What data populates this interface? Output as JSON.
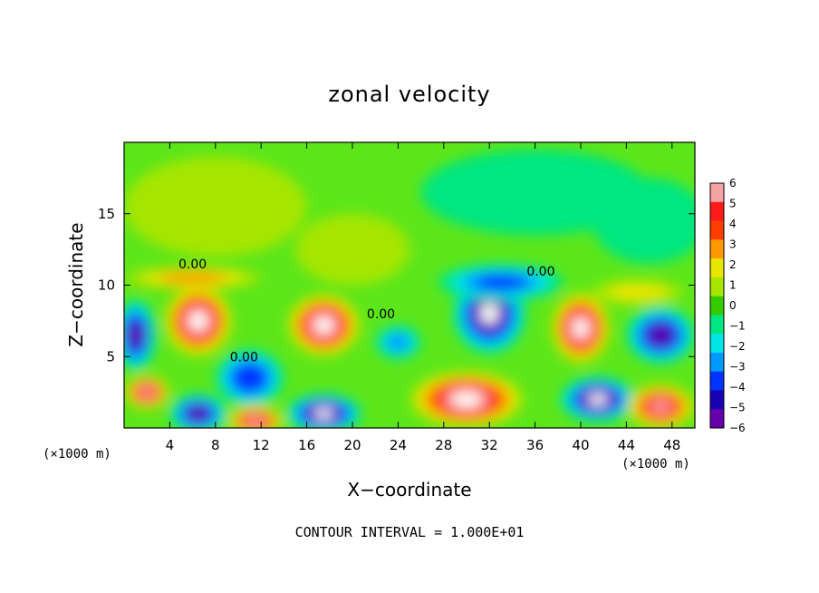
{
  "chart_data": {
    "type": "heatmap",
    "title": "zonal velocity",
    "xlabel": "X−coordinate",
    "ylabel": "Z−coordinate",
    "x_unit": "(×1000 m)",
    "z_unit": "(×1000 m)",
    "xlim": [
      0,
      50
    ],
    "ylim": [
      0,
      20
    ],
    "x_ticks": [
      4,
      8,
      12,
      16,
      20,
      24,
      28,
      32,
      36,
      40,
      44,
      48
    ],
    "x_tick_labels": [
      "4",
      "8",
      "12",
      "16",
      "20",
      "24",
      "28",
      "32",
      "36",
      "40",
      "44",
      "48"
    ],
    "y_ticks": [
      5,
      10,
      15
    ],
    "y_tick_labels": [
      "5",
      "10",
      "15"
    ],
    "colorbar": {
      "min": -6,
      "max": 6,
      "levels": [
        6,
        5,
        4,
        3,
        2,
        1,
        0,
        -1,
        -2,
        -3,
        -4,
        -5,
        -6
      ],
      "labels": [
        "6",
        "5",
        "4",
        "3",
        "2",
        "1",
        "0",
        "−1",
        "−2",
        "−3",
        "−4",
        "−5",
        "−6"
      ],
      "colors": [
        "#f4a3a3",
        "#ff1a1a",
        "#ff3d00",
        "#ff9900",
        "#e6e600",
        "#a6e600",
        "#33cc00",
        "#00e680",
        "#00e6e6",
        "#0099ff",
        "#0033ff",
        "#1a00b3",
        "#6600aa"
      ]
    },
    "contour_labels": [
      {
        "text": "0.00",
        "x": 6,
        "z": 11.5
      },
      {
        "text": "0.00",
        "x": 22.5,
        "z": 8
      },
      {
        "text": "0.00",
        "x": 10.5,
        "z": 5
      },
      {
        "text": "0.00",
        "x": 36.5,
        "z": 11
      }
    ],
    "footer": "CONTOUR INTERVAL =  1.000E+01",
    "blobs": [
      {
        "x": 6.5,
        "z": 7.5,
        "rx": 3.0,
        "rz": 2.5,
        "v": 6.5
      },
      {
        "x": 17.5,
        "z": 7.2,
        "rx": 3.2,
        "rz": 2.2,
        "v": 6.5
      },
      {
        "x": 32,
        "z": 8.0,
        "rx": 3.2,
        "rz": 2.8,
        "v": -6.5
      },
      {
        "x": 40,
        "z": 7.0,
        "rx": 2.6,
        "rz": 2.5,
        "v": 6.5
      },
      {
        "x": 1.0,
        "z": 6.5,
        "rx": 1.8,
        "rz": 2.5,
        "v": -6.0
      },
      {
        "x": 47,
        "z": 6.5,
        "rx": 3.0,
        "rz": 2.0,
        "v": -6.0
      },
      {
        "x": 11,
        "z": 3.5,
        "rx": 3.0,
        "rz": 2.0,
        "v": -4.5
      },
      {
        "x": 2.0,
        "z": 2.5,
        "rx": 2.0,
        "rz": 1.2,
        "v": 6.0
      },
      {
        "x": 6.5,
        "z": 1.0,
        "rx": 2.5,
        "rz": 1.4,
        "v": -6.0
      },
      {
        "x": 11.5,
        "z": 0.5,
        "rx": 2.5,
        "rz": 1.1,
        "v": 6.0
      },
      {
        "x": 17.5,
        "z": 1.0,
        "rx": 3.3,
        "rz": 1.4,
        "v": -6.5
      },
      {
        "x": 30,
        "z": 2.0,
        "rx": 5.0,
        "rz": 2.0,
        "v": 6.5
      },
      {
        "x": 41.5,
        "z": 2.0,
        "rx": 3.3,
        "rz": 1.6,
        "v": -6.5
      },
      {
        "x": 47,
        "z": 1.5,
        "rx": 3.0,
        "rz": 1.6,
        "v": 6.0
      },
      {
        "x": 6,
        "z": 10.5,
        "rx": 6.0,
        "rz": 0.8,
        "v": 2.5
      },
      {
        "x": 33,
        "z": 10.2,
        "rx": 5.5,
        "rz": 1.3,
        "v": -4.0
      },
      {
        "x": 24,
        "z": 6.0,
        "rx": 2.0,
        "rz": 1.2,
        "v": -3.0
      },
      {
        "x": 45,
        "z": 9.5,
        "rx": 4.0,
        "rz": 0.9,
        "v": 2.0
      },
      {
        "x": 8,
        "z": 15.5,
        "rx": 8.0,
        "rz": 3.5,
        "v": 0.9
      },
      {
        "x": 20,
        "z": 12.5,
        "rx": 5.0,
        "rz": 2.5,
        "v": 0.8
      },
      {
        "x": 36,
        "z": 16.5,
        "rx": 10.0,
        "rz": 3.0,
        "v": -0.8
      },
      {
        "x": 46,
        "z": 14.5,
        "rx": 5.0,
        "rz": 3.0,
        "v": -1.0
      }
    ]
  }
}
